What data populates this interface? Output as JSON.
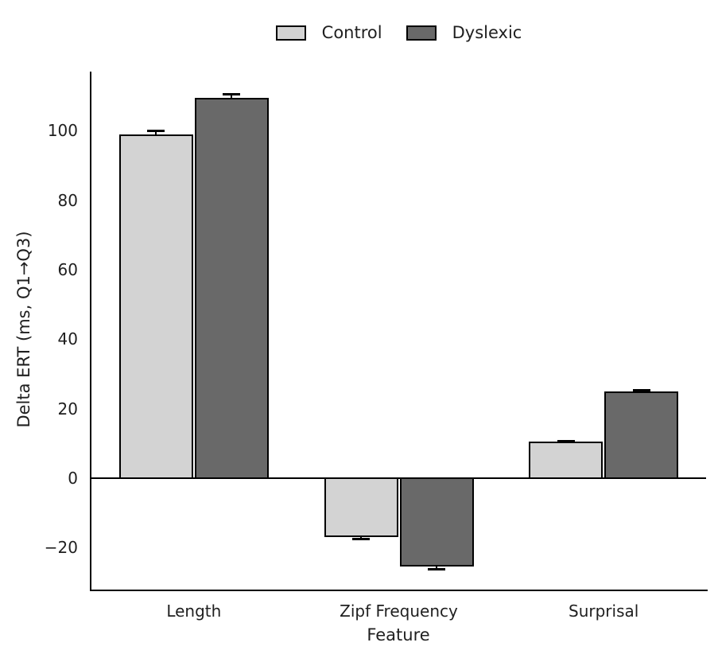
{
  "chart_data": {
    "type": "bar",
    "title": "",
    "categories": [
      "Length",
      "Zipf Frequency",
      "Surprisal"
    ],
    "series": [
      {
        "name": "Control",
        "color": "#d3d3d3",
        "values": [
          99,
          -17,
          10.5
        ],
        "errors": [
          1,
          0.5,
          0.3
        ]
      },
      {
        "name": "Dyslexic",
        "color": "#696969",
        "values": [
          109.5,
          -25.5,
          25
        ],
        "errors": [
          1,
          0.5,
          0.5
        ]
      }
    ],
    "xlabel": "Feature",
    "ylabel": "Delta ERT (ms, Q1→Q3)",
    "yticks": [
      -20,
      0,
      20,
      40,
      60,
      80,
      100
    ],
    "ylim": [
      -32.5,
      117
    ],
    "grid": false,
    "legend_position": "top-center",
    "bar_edge_color": "#000000",
    "background": "#ffffff",
    "text_color": "#1f1f1f"
  }
}
